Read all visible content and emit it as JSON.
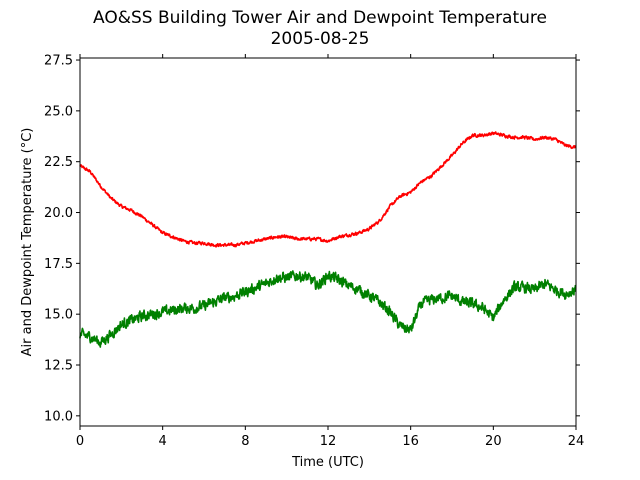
{
  "title": {
    "line1": "AO&SS Building Tower Air and Dewpoint Temperature",
    "line2": "2005-08-25"
  },
  "colors": {
    "air": "#ff0000",
    "dewpoint": "#008000",
    "axes": "#000000",
    "background": "#ffffff"
  },
  "chart_data": {
    "type": "line",
    "title": "AO&SS Building Tower Air and Dewpoint Temperature",
    "subtitle": "2005-08-25",
    "xlabel": "Time (UTC)",
    "ylabel": "Air and Dewpoint Temperature (°C)",
    "xlim": [
      0,
      24
    ],
    "ylim": [
      9.5,
      27.6
    ],
    "xticks": [
      0,
      4,
      8,
      12,
      16,
      20,
      24
    ],
    "xtick_labels": [
      "0",
      "4",
      "8",
      "12",
      "16",
      "20",
      "24"
    ],
    "yticks": [
      10.0,
      12.5,
      15.0,
      17.5,
      20.0,
      22.5,
      25.0,
      27.5
    ],
    "ytick_labels": [
      "10.0",
      "12.5",
      "15.0",
      "17.5",
      "20.0",
      "22.5",
      "25.0",
      "27.5"
    ],
    "grid": false,
    "legend": "none",
    "series": [
      {
        "color": "#ff0000",
        "noise": 0.12,
        "x": [
          0,
          0.5,
          1,
          1.5,
          2,
          2.5,
          3,
          3.5,
          4,
          4.5,
          5,
          5.5,
          6,
          6.5,
          7,
          7.5,
          8,
          8.5,
          9,
          9.5,
          10,
          10.5,
          11,
          11.5,
          12,
          12.5,
          13,
          13.5,
          14,
          14.5,
          15,
          15.5,
          16,
          16.5,
          17,
          17.5,
          18,
          18.5,
          19,
          19.5,
          20,
          20.5,
          21,
          21.5,
          22,
          22.5,
          23,
          23.5,
          24
        ],
        "y": [
          22.3,
          22.0,
          21.3,
          20.7,
          20.3,
          20.1,
          19.8,
          19.4,
          19.0,
          18.8,
          18.6,
          18.5,
          18.5,
          18.4,
          18.4,
          18.4,
          18.5,
          18.6,
          18.7,
          18.8,
          18.8,
          18.7,
          18.7,
          18.7,
          18.6,
          18.8,
          18.9,
          19.0,
          19.2,
          19.6,
          20.3,
          20.8,
          21.0,
          21.5,
          21.8,
          22.3,
          22.8,
          23.4,
          23.8,
          23.8,
          23.9,
          23.8,
          23.7,
          23.7,
          23.6,
          23.7,
          23.6,
          23.3,
          23.2
        ]
      },
      {
        "color": "#008000",
        "noise": 0.4,
        "x": [
          0,
          0.5,
          1,
          1.5,
          2,
          2.5,
          3,
          3.5,
          4,
          4.5,
          5,
          5.5,
          6,
          6.5,
          7,
          7.5,
          8,
          8.5,
          9,
          9.5,
          10,
          10.5,
          11,
          11.5,
          12,
          12.5,
          13,
          13.5,
          14,
          14.5,
          15,
          15.5,
          16,
          16.5,
          17,
          17.5,
          18,
          18.5,
          19,
          19.5,
          20,
          20.5,
          21,
          21.5,
          22,
          22.5,
          23,
          23.5,
          24
        ],
        "y": [
          14.0,
          13.9,
          13.6,
          14.0,
          14.5,
          14.7,
          14.9,
          15.0,
          15.1,
          15.2,
          15.3,
          15.3,
          15.4,
          15.6,
          15.8,
          15.9,
          16.1,
          16.3,
          16.5,
          16.8,
          16.8,
          16.9,
          16.8,
          16.4,
          16.9,
          16.7,
          16.4,
          16.2,
          15.9,
          15.6,
          15.1,
          14.4,
          14.2,
          15.5,
          15.7,
          15.8,
          15.9,
          15.6,
          15.5,
          15.3,
          14.8,
          15.7,
          16.3,
          16.3,
          16.2,
          16.5,
          16.2,
          16.0,
          16.2
        ]
      }
    ]
  }
}
